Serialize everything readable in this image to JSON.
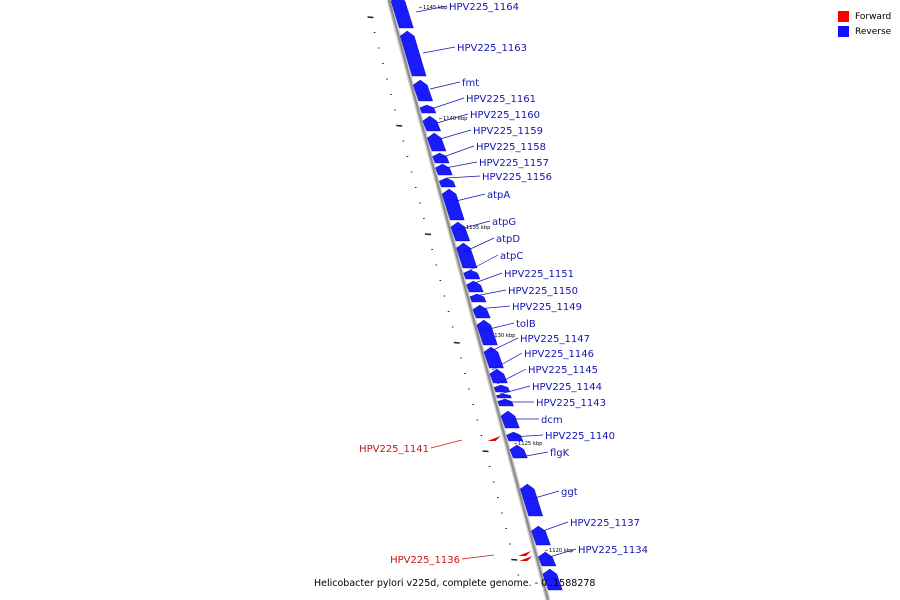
{
  "colors": {
    "forward": "#e50000",
    "reverse": "#1a1aff",
    "backbone": "#8c8c8c",
    "label_reverse": "#1414b4",
    "label_forward": "#c81414"
  },
  "legend": [
    {
      "label": "Forward",
      "color": "#ff0000"
    },
    {
      "label": "Reverse",
      "color": "#1010ff"
    }
  ],
  "caption": "Helicobacter pylori v225d, complete genome. - 0..1588278",
  "scale_labels": [
    "1145 kbp",
    "1140 kbp",
    "1135 kbp",
    "1130 kbp",
    "1125 kbp",
    "1120 kbp"
  ],
  "genes": [
    {
      "label": "HPV225_1164",
      "strand": "reverse"
    },
    {
      "label": "HPV225_1163",
      "strand": "reverse"
    },
    {
      "label": "fmt",
      "strand": "reverse"
    },
    {
      "label": "HPV225_1161",
      "strand": "reverse"
    },
    {
      "label": "HPV225_1160",
      "strand": "reverse"
    },
    {
      "label": "HPV225_1159",
      "strand": "reverse"
    },
    {
      "label": "HPV225_1158",
      "strand": "reverse"
    },
    {
      "label": "HPV225_1157",
      "strand": "reverse"
    },
    {
      "label": "HPV225_1156",
      "strand": "reverse"
    },
    {
      "label": "atpA",
      "strand": "reverse"
    },
    {
      "label": "atpG",
      "strand": "reverse"
    },
    {
      "label": "atpD",
      "strand": "reverse"
    },
    {
      "label": "atpC",
      "strand": "reverse"
    },
    {
      "label": "HPV225_1151",
      "strand": "reverse"
    },
    {
      "label": "HPV225_1150",
      "strand": "reverse"
    },
    {
      "label": "HPV225_1149",
      "strand": "reverse"
    },
    {
      "label": "tolB",
      "strand": "reverse"
    },
    {
      "label": "HPV225_1147",
      "strand": "reverse"
    },
    {
      "label": "HPV225_1146",
      "strand": "reverse"
    },
    {
      "label": "HPV225_1145",
      "strand": "reverse"
    },
    {
      "label": "HPV225_1144",
      "strand": "reverse"
    },
    {
      "label": "HPV225_1143",
      "strand": "reverse"
    },
    {
      "label": "dcm",
      "strand": "reverse"
    },
    {
      "label": "HPV225_1140",
      "strand": "reverse"
    },
    {
      "label": "flgK",
      "strand": "reverse"
    },
    {
      "label": "ggt",
      "strand": "reverse"
    },
    {
      "label": "HPV225_1137",
      "strand": "reverse"
    },
    {
      "label": "HPV225_1134",
      "strand": "reverse"
    },
    {
      "label": "HPV225_1141",
      "strand": "forward"
    },
    {
      "label": "HPV225_1136",
      "strand": "forward"
    }
  ]
}
